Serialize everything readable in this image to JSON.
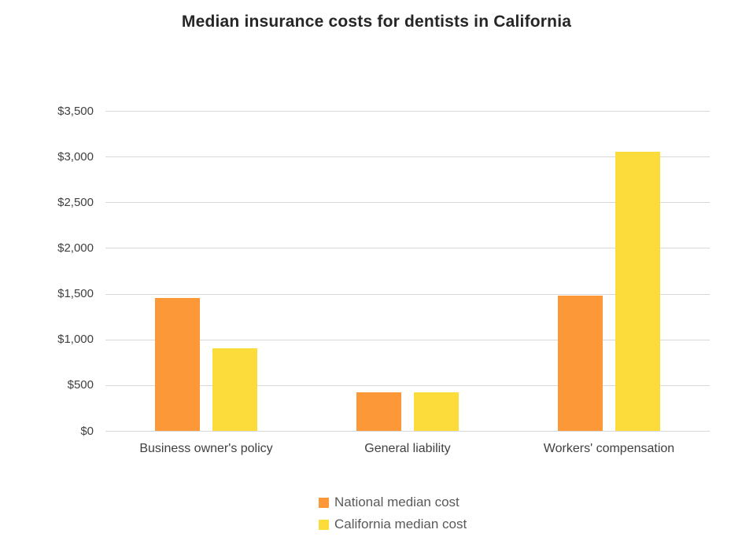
{
  "chart_data": {
    "type": "bar",
    "title": "Median insurance costs for dentists in California",
    "categories": [
      "Business owner's policy",
      "General liability",
      "Workers' compensation"
    ],
    "series": [
      {
        "name": "National median cost",
        "color": "#FC9838",
        "values": [
          1450,
          425,
          1475
        ]
      },
      {
        "name": "California median cost",
        "color": "#FCDC3B",
        "values": [
          900,
          425,
          3050
        ]
      }
    ],
    "xlabel": "",
    "ylabel": "",
    "ylim": [
      0,
      3500
    ],
    "ytick_step": 500,
    "ytick_labels": [
      "$0",
      "$500",
      "$1,000",
      "$1,500",
      "$2,000",
      "$2,500",
      "$3,000",
      "$3,500"
    ],
    "grid": true,
    "legend_position": "bottom",
    "colors": {
      "title_text": "#262626",
      "axis_text": "#404040",
      "legend_text": "#595959",
      "gridline": "#d9d9d9",
      "background": "#ffffff"
    }
  }
}
